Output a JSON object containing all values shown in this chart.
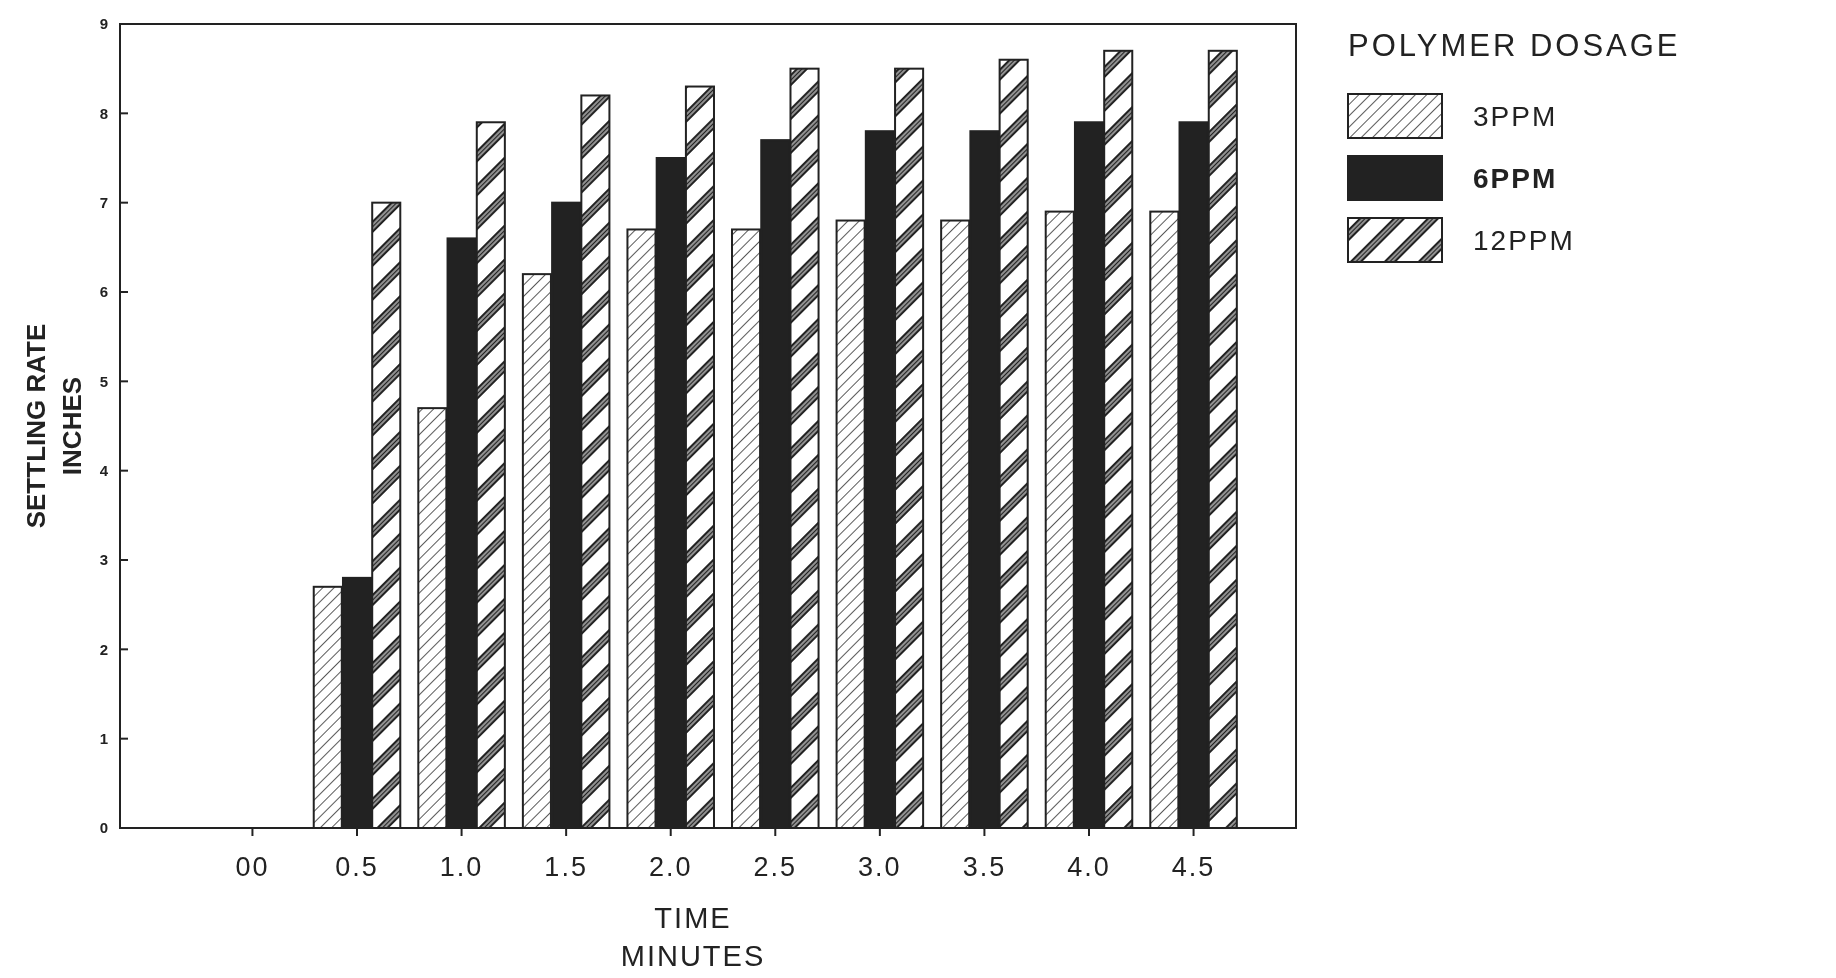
{
  "chart_data": {
    "type": "bar",
    "xlabel": "TIME\nMINUTES",
    "ylabel": "SETTLING RATE\nINCHES",
    "legend_title": "POLYMER DOSAGE",
    "legend": "right",
    "categories": [
      "00",
      "0.5",
      "1.0",
      "1.5",
      "2.0",
      "2.5",
      "3.0",
      "3.5",
      "4.0",
      "4.5"
    ],
    "series": [
      {
        "name": "3PPM",
        "color": "#222222",
        "values": [
          0,
          2.7,
          4.7,
          6.2,
          6.7,
          6.7,
          6.8,
          6.8,
          6.9,
          6.9
        ]
      },
      {
        "name": "6PPM",
        "color": "#222222",
        "values": [
          0,
          2.8,
          6.6,
          7.0,
          7.5,
          7.7,
          7.8,
          7.8,
          7.9,
          7.9
        ]
      },
      {
        "name": "12PPM",
        "color": "#222222",
        "values": [
          0,
          7.0,
          7.9,
          8.2,
          8.3,
          8.5,
          8.5,
          8.6,
          8.7,
          8.7
        ]
      }
    ],
    "ylim": [
      0,
      9
    ],
    "yticks": [
      0,
      1,
      2,
      3,
      4,
      5,
      6,
      7,
      8,
      9
    ]
  }
}
